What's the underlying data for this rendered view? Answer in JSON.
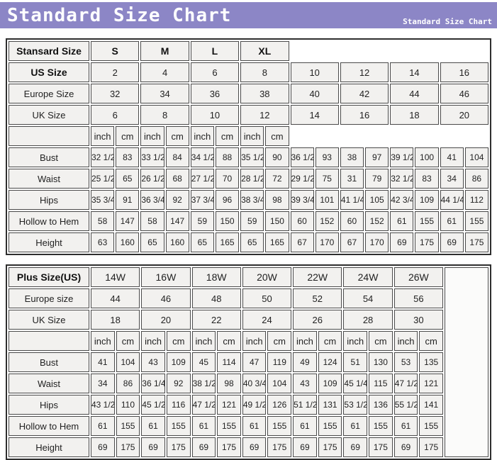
{
  "header": {
    "title": "Standard Size Chart",
    "subtitle": "Standard Size Chart",
    "bar_color": "#8c86c6"
  },
  "chart_data": [
    {
      "type": "table",
      "name": "standard-sizes",
      "corner_label": "Stansard Size",
      "groups": [
        "S",
        "M",
        "L",
        "XL"
      ],
      "groups_bold": true,
      "units": [
        "inch",
        "cm"
      ],
      "size_rows": [
        {
          "label": "US Size",
          "bold": true,
          "values": [
            "2",
            "4",
            "6",
            "8",
            "10",
            "12",
            "14",
            "16"
          ]
        },
        {
          "label": "Europe Size",
          "bold": false,
          "values": [
            "32",
            "34",
            "36",
            "38",
            "40",
            "42",
            "44",
            "46"
          ]
        },
        {
          "label": "UK Size",
          "bold": false,
          "values": [
            "6",
            "8",
            "10",
            "12",
            "14",
            "16",
            "18",
            "20"
          ]
        }
      ],
      "measure_rows": [
        {
          "label": "Bust",
          "values": [
            "32 1/2",
            "83",
            "33 1/2",
            "84",
            "34 1/2",
            "88",
            "35 1/2",
            "90",
            "36 1/2",
            "93",
            "38",
            "97",
            "39 1/2",
            "100",
            "41",
            "104"
          ]
        },
        {
          "label": "Waist",
          "values": [
            "25 1/2",
            "65",
            "26 1/2",
            "68",
            "27 1/2",
            "70",
            "28 1/2",
            "72",
            "29 1/2",
            "75",
            "31",
            "79",
            "32 1/2",
            "83",
            "34",
            "86"
          ]
        },
        {
          "label": "Hips",
          "values": [
            "35 3/4",
            "91",
            "36 3/4",
            "92",
            "37 3/4",
            "96",
            "38 3/4",
            "98",
            "39 3/4",
            "101",
            "41 1/4",
            "105",
            "42 3/4",
            "109",
            "44 1/4",
            "112"
          ]
        },
        {
          "label": "Hollow to Hem",
          "values": [
            "58",
            "147",
            "58",
            "147",
            "59",
            "150",
            "59",
            "150",
            "60",
            "152",
            "60",
            "152",
            "61",
            "155",
            "61",
            "155"
          ]
        },
        {
          "label": "Height",
          "values": [
            "63",
            "160",
            "65",
            "160",
            "65",
            "165",
            "65",
            "165",
            "67",
            "170",
            "67",
            "170",
            "69",
            "175",
            "69",
            "175"
          ]
        }
      ],
      "trailing_empty_column": false
    },
    {
      "type": "table",
      "name": "plus-sizes",
      "corner_label": "Plus Size(US)",
      "groups": [
        "14W",
        "16W",
        "18W",
        "20W",
        "22W",
        "24W",
        "26W"
      ],
      "groups_bold": false,
      "units": [
        "inch",
        "cm"
      ],
      "size_rows": [
        {
          "label": "Europe size",
          "bold": false,
          "values": [
            "44",
            "46",
            "48",
            "50",
            "52",
            "54",
            "56"
          ]
        },
        {
          "label": "UK Size",
          "bold": false,
          "values": [
            "18",
            "20",
            "22",
            "24",
            "26",
            "28",
            "30"
          ]
        }
      ],
      "measure_rows": [
        {
          "label": "Bust",
          "values": [
            "41",
            "104",
            "43",
            "109",
            "45",
            "114",
            "47",
            "119",
            "49",
            "124",
            "51",
            "130",
            "53",
            "135"
          ]
        },
        {
          "label": "Waist",
          "values": [
            "34",
            "86",
            "36 1/4",
            "92",
            "38 1/2",
            "98",
            "40 3/4",
            "104",
            "43",
            "109",
            "45 1/4",
            "115",
            "47 1/2",
            "121"
          ]
        },
        {
          "label": "Hips",
          "values": [
            "43 1/2",
            "110",
            "45 1/2",
            "116",
            "47 1/2",
            "121",
            "49 1/2",
            "126",
            "51 1/2",
            "131",
            "53 1/2",
            "136",
            "55 1/2",
            "141"
          ]
        },
        {
          "label": "Hollow to Hem",
          "values": [
            "61",
            "155",
            "61",
            "155",
            "61",
            "155",
            "61",
            "155",
            "61",
            "155",
            "61",
            "155",
            "61",
            "155"
          ]
        },
        {
          "label": "Height",
          "values": [
            "69",
            "175",
            "69",
            "175",
            "69",
            "175",
            "69",
            "175",
            "69",
            "175",
            "69",
            "175",
            "69",
            "175"
          ]
        }
      ],
      "trailing_empty_column": true
    }
  ]
}
